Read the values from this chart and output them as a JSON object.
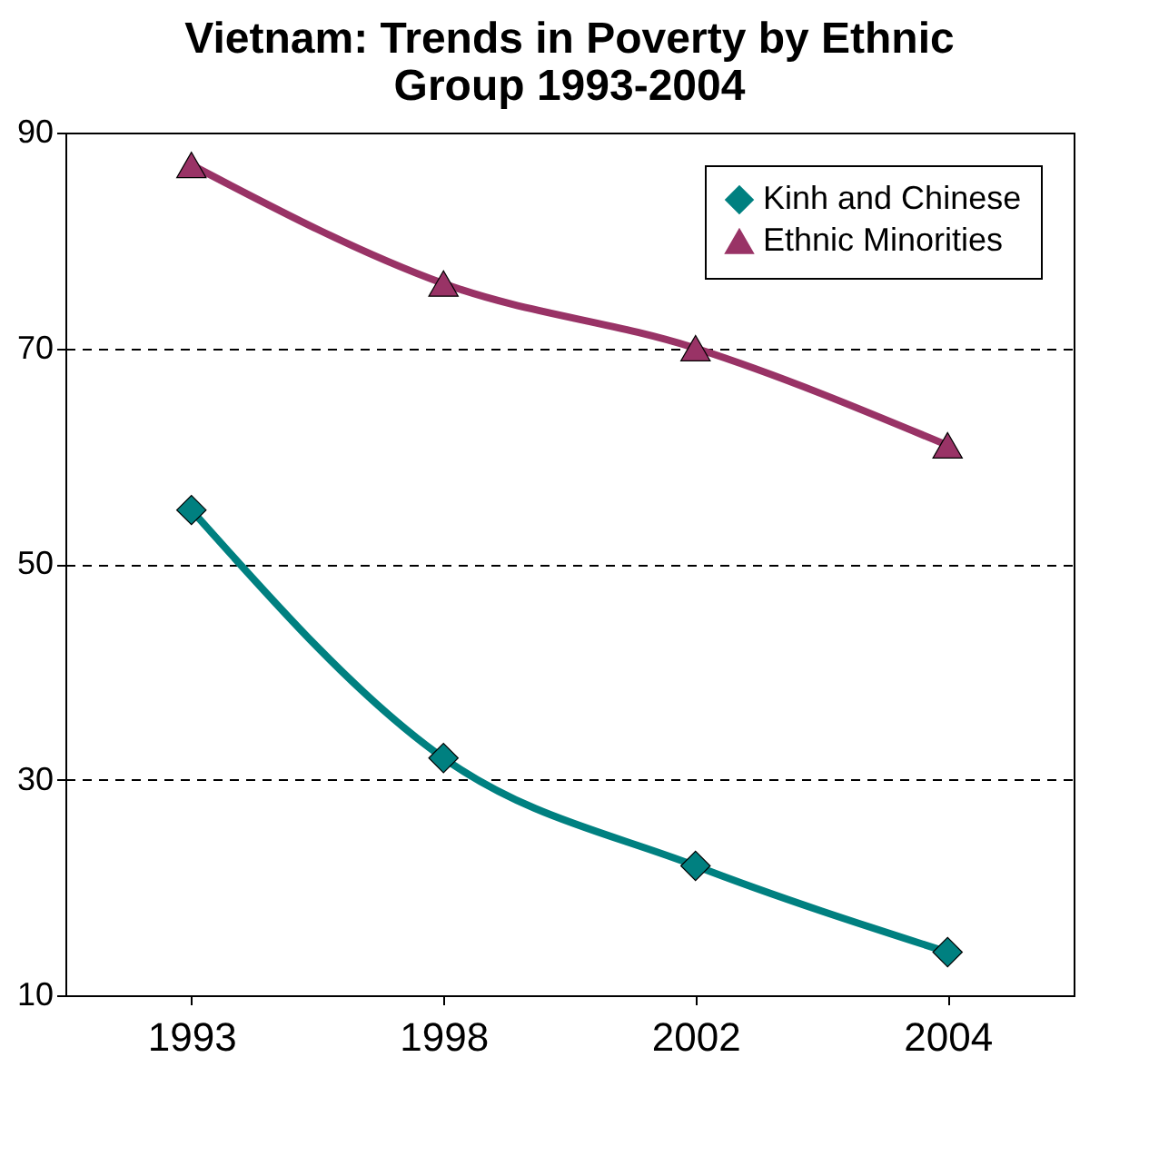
{
  "chart_data": {
    "type": "line",
    "title": "Vietnam:  Trends in Poverty by Ethnic Group 1993-2004",
    "categories": [
      "1993",
      "1998",
      "2002",
      "2004"
    ],
    "series": [
      {
        "name": "Kinh and Chinese",
        "color": "#008080",
        "marker": "diamond",
        "values": [
          55,
          32,
          22,
          14
        ]
      },
      {
        "name": "Ethnic Minorities",
        "color": "#993366",
        "marker": "triangle",
        "values": [
          87,
          76,
          70,
          61
        ]
      }
    ],
    "ylim": [
      10,
      90
    ],
    "yticks": [
      10,
      30,
      50,
      70,
      90
    ],
    "grid": "y",
    "legend": "top right",
    "line_style": "solid"
  }
}
